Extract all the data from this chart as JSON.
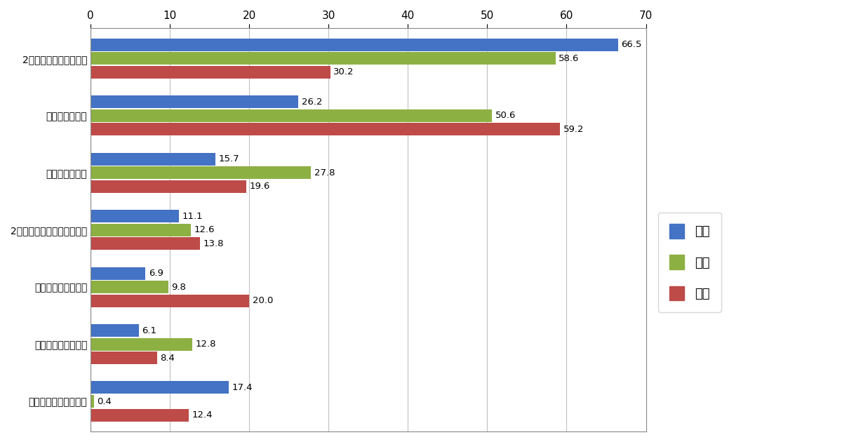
{
  "categories": [
    "2営業日以降着の宅配便",
    "翌日着の宅配便",
    "同日着の宅配便",
    "2営業日以降の店舗受け取り",
    "翌日の店舗受け取り",
    "同日の店舗受け取り",
    "当てはまるものはない"
  ],
  "series": {
    "米国": [
      66.5,
      26.2,
      15.7,
      11.1,
      6.9,
      6.1,
      17.4
    ],
    "中国": [
      58.6,
      50.6,
      27.8,
      12.6,
      9.8,
      12.8,
      0.4
    ],
    "日本": [
      30.2,
      59.2,
      19.6,
      13.8,
      20.0,
      8.4,
      12.4
    ]
  },
  "colors": {
    "米国": "#4472C4",
    "中国": "#8DB043",
    "日本": "#BE4B48"
  },
  "xlim": [
    0,
    70
  ],
  "xticks": [
    0,
    10,
    20,
    30,
    40,
    50,
    60,
    70
  ],
  "bar_height": 0.24,
  "legend_order": [
    "米国",
    "中国",
    "日本"
  ],
  "background_color": "#FFFFFF",
  "plot_bg_color": "#FFFFFF",
  "label_fontsize": 9.5,
  "tick_fontsize": 11,
  "category_fontsize": 11
}
